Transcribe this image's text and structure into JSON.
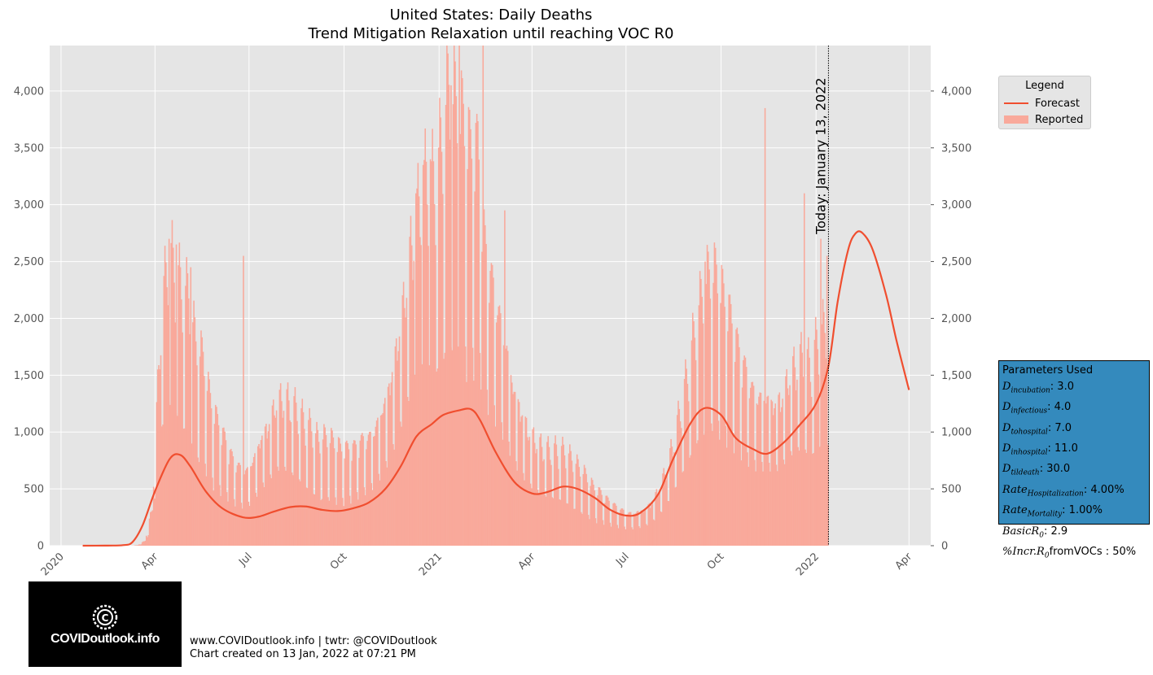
{
  "chart_data": {
    "type": "bar+line",
    "title_line1": "United States: Daily Deaths",
    "title_line2": "Trend Mitigation Relaxation until reaching VOC R0",
    "ylim": [
      0,
      4400
    ],
    "y_ticks": [
      0,
      500,
      1000,
      1500,
      2000,
      2500,
      3000,
      3500,
      4000
    ],
    "y_tick_labels": [
      "0",
      "500",
      "1,000",
      "1,500",
      "2,000",
      "2,500",
      "3,000",
      "3,500",
      "4,000"
    ],
    "xlim": [
      "2019-12-21",
      "2022-04-22"
    ],
    "x_ticks": [
      "2020-01-01",
      "2020-04-01",
      "2020-07-01",
      "2020-10-01",
      "2021-01-01",
      "2021-04-01",
      "2021-07-01",
      "2021-10-01",
      "2022-01-01",
      "2022-04-01"
    ],
    "x_tick_labels": [
      "2020",
      "Apr",
      "Jul",
      "Oct",
      "2021",
      "Apr",
      "Jul",
      "Oct",
      "2022",
      "Apr"
    ],
    "today_date": "2022-01-13",
    "today_label": "Today: January 13, 2022",
    "reported_weekly_avg": [
      [
        "2020-01-22",
        0
      ],
      [
        "2020-02-29",
        0
      ],
      [
        "2020-03-08",
        0
      ],
      [
        "2020-03-15",
        5
      ],
      [
        "2020-03-22",
        40
      ],
      [
        "2020-03-29",
        300
      ],
      [
        "2020-04-05",
        1500
      ],
      [
        "2020-04-12",
        2100
      ],
      [
        "2020-04-19",
        2050
      ],
      [
        "2020-04-26",
        1850
      ],
      [
        "2020-05-03",
        1800
      ],
      [
        "2020-05-10",
        1450
      ],
      [
        "2020-05-17",
        1350
      ],
      [
        "2020-05-24",
        1050
      ],
      [
        "2020-05-31",
        900
      ],
      [
        "2020-06-07",
        780
      ],
      [
        "2020-06-14",
        650
      ],
      [
        "2020-06-21",
        580
      ],
      [
        "2020-06-28",
        550
      ],
      [
        "2020-07-05",
        650
      ],
      [
        "2020-07-12",
        800
      ],
      [
        "2020-07-19",
        900
      ],
      [
        "2020-07-26",
        1050
      ],
      [
        "2020-08-02",
        1100
      ],
      [
        "2020-08-09",
        1050
      ],
      [
        "2020-08-16",
        1000
      ],
      [
        "2020-08-23",
        900
      ],
      [
        "2020-08-30",
        850
      ],
      [
        "2020-09-06",
        750
      ],
      [
        "2020-09-13",
        780
      ],
      [
        "2020-09-20",
        750
      ],
      [
        "2020-09-27",
        700
      ],
      [
        "2020-10-04",
        700
      ],
      [
        "2020-10-11",
        720
      ],
      [
        "2020-10-18",
        780
      ],
      [
        "2020-10-25",
        800
      ],
      [
        "2020-11-01",
        900
      ],
      [
        "2020-11-08",
        1050
      ],
      [
        "2020-11-15",
        1250
      ],
      [
        "2020-11-22",
        1550
      ],
      [
        "2020-11-29",
        1900
      ],
      [
        "2020-12-06",
        2300
      ],
      [
        "2020-12-13",
        2550
      ],
      [
        "2020-12-20",
        2700
      ],
      [
        "2020-12-27",
        2600
      ],
      [
        "2021-01-03",
        2900
      ],
      [
        "2021-01-10",
        3300
      ],
      [
        "2021-01-17",
        3150
      ],
      [
        "2021-01-24",
        3050
      ],
      [
        "2021-01-31",
        2850
      ],
      [
        "2021-02-07",
        2900
      ],
      [
        "2021-02-14",
        2200
      ],
      [
        "2021-02-21",
        1950
      ],
      [
        "2021-02-28",
        1700
      ],
      [
        "2021-03-07",
        1450
      ],
      [
        "2021-03-14",
        1150
      ],
      [
        "2021-03-21",
        1000
      ],
      [
        "2021-03-28",
        850
      ],
      [
        "2021-04-04",
        780
      ],
      [
        "2021-04-11",
        720
      ],
      [
        "2021-04-18",
        700
      ],
      [
        "2021-04-25",
        700
      ],
      [
        "2021-05-02",
        680
      ],
      [
        "2021-05-09",
        620
      ],
      [
        "2021-05-16",
        560
      ],
      [
        "2021-05-23",
        500
      ],
      [
        "2021-05-30",
        420
      ],
      [
        "2021-06-06",
        380
      ],
      [
        "2021-06-13",
        330
      ],
      [
        "2021-06-20",
        290
      ],
      [
        "2021-06-27",
        260
      ],
      [
        "2021-07-04",
        240
      ],
      [
        "2021-07-11",
        250
      ],
      [
        "2021-07-18",
        270
      ],
      [
        "2021-07-25",
        320
      ],
      [
        "2021-08-01",
        420
      ],
      [
        "2021-08-08",
        560
      ],
      [
        "2021-08-15",
        750
      ],
      [
        "2021-08-22",
        1000
      ],
      [
        "2021-08-29",
        1250
      ],
      [
        "2021-09-05",
        1550
      ],
      [
        "2021-09-12",
        1800
      ],
      [
        "2021-09-19",
        1950
      ],
      [
        "2021-09-26",
        1950
      ],
      [
        "2021-10-03",
        1800
      ],
      [
        "2021-10-10",
        1650
      ],
      [
        "2021-10-17",
        1450
      ],
      [
        "2021-10-24",
        1300
      ],
      [
        "2021-10-31",
        1150
      ],
      [
        "2021-11-07",
        1100
      ],
      [
        "2021-11-14",
        1100
      ],
      [
        "2021-11-21",
        1050
      ],
      [
        "2021-11-28",
        1100
      ],
      [
        "2021-12-05",
        1250
      ],
      [
        "2021-12-12",
        1350
      ],
      [
        "2021-12-19",
        1400
      ],
      [
        "2021-12-26",
        1300
      ],
      [
        "2022-01-02",
        1500
      ],
      [
        "2022-01-12",
        1600
      ]
    ],
    "reported_spikes": [
      [
        "2020-04-14",
        2700
      ],
      [
        "2020-04-21",
        2650
      ],
      [
        "2020-05-05",
        2450
      ],
      [
        "2020-06-25",
        2550
      ],
      [
        "2020-12-09",
        3100
      ],
      [
        "2020-12-16",
        3350
      ],
      [
        "2020-12-23",
        3400
      ],
      [
        "2021-01-12",
        4050
      ],
      [
        "2021-01-20",
        4400
      ],
      [
        "2021-02-12",
        4450
      ],
      [
        "2021-03-05",
        2950
      ],
      [
        "2021-09-15",
        2500
      ],
      [
        "2021-11-12",
        3850
      ],
      [
        "2021-12-20",
        3100
      ],
      [
        "2022-01-05",
        2700
      ],
      [
        "2022-01-11",
        2550
      ]
    ],
    "forecast": [
      [
        "2020-01-22",
        0
      ],
      [
        "2020-02-15",
        1
      ],
      [
        "2020-03-01",
        5
      ],
      [
        "2020-03-10",
        30
      ],
      [
        "2020-03-20",
        180
      ],
      [
        "2020-04-01",
        480
      ],
      [
        "2020-04-15",
        760
      ],
      [
        "2020-04-25",
        800
      ],
      [
        "2020-05-05",
        700
      ],
      [
        "2020-05-20",
        480
      ],
      [
        "2020-06-05",
        330
      ],
      [
        "2020-06-25",
        250
      ],
      [
        "2020-07-10",
        255
      ],
      [
        "2020-07-25",
        300
      ],
      [
        "2020-08-10",
        340
      ],
      [
        "2020-08-25",
        345
      ],
      [
        "2020-09-10",
        315
      ],
      [
        "2020-09-25",
        305
      ],
      [
        "2020-10-10",
        330
      ],
      [
        "2020-10-25",
        380
      ],
      [
        "2020-11-10",
        500
      ],
      [
        "2020-11-25",
        700
      ],
      [
        "2020-12-10",
        960
      ],
      [
        "2020-12-25",
        1070
      ],
      [
        "2021-01-05",
        1150
      ],
      [
        "2021-01-20",
        1190
      ],
      [
        "2021-02-01",
        1200
      ],
      [
        "2021-02-10",
        1100
      ],
      [
        "2021-02-25",
        820
      ],
      [
        "2021-03-15",
        560
      ],
      [
        "2021-04-01",
        460
      ],
      [
        "2021-04-15",
        470
      ],
      [
        "2021-05-01",
        520
      ],
      [
        "2021-05-15",
        500
      ],
      [
        "2021-06-01",
        420
      ],
      [
        "2021-06-15",
        320
      ],
      [
        "2021-07-01",
        265
      ],
      [
        "2021-07-15",
        290
      ],
      [
        "2021-08-01",
        450
      ],
      [
        "2021-08-15",
        750
      ],
      [
        "2021-09-01",
        1070
      ],
      [
        "2021-09-15",
        1210
      ],
      [
        "2021-10-01",
        1150
      ],
      [
        "2021-10-15",
        950
      ],
      [
        "2021-11-01",
        850
      ],
      [
        "2021-11-15",
        810
      ],
      [
        "2021-12-01",
        910
      ],
      [
        "2021-12-15",
        1050
      ],
      [
        "2022-01-01",
        1250
      ],
      [
        "2022-01-13",
        1580
      ],
      [
        "2022-01-22",
        2150
      ],
      [
        "2022-02-01",
        2600
      ],
      [
        "2022-02-08",
        2745
      ],
      [
        "2022-02-15",
        2750
      ],
      [
        "2022-02-25",
        2600
      ],
      [
        "2022-03-10",
        2200
      ],
      [
        "2022-03-20",
        1800
      ],
      [
        "2022-04-01",
        1370
      ]
    ],
    "legend": {
      "title": "Legend",
      "items": [
        "Forecast",
        "Reported"
      ]
    },
    "colors": {
      "forecast": "#f04e2f",
      "reported": "#f9a99b",
      "plot_bg": "#e5e5e5",
      "grid": "#ffffff",
      "params_bg": "#348abd"
    }
  },
  "params": {
    "title": "Parameters Used",
    "rows": [
      {
        "sym": "D",
        "sub": "incubation",
        "val": ": 3.0"
      },
      {
        "sym": "D",
        "sub": "infectious",
        "val": ": 4.0"
      },
      {
        "sym": "D",
        "sub": "tohospital",
        "val": ": 7.0"
      },
      {
        "sym": "D",
        "sub": "inhospital",
        "val": ": 11.0"
      },
      {
        "sym": "D",
        "sub": "tildeath",
        "val": ": 30.0"
      },
      {
        "sym": "Rate",
        "sub": "Hospitalization",
        "val": ": 4.00%"
      },
      {
        "sym": "Rate",
        "sub": "Mortality",
        "val": ": 1.00%"
      },
      {
        "sym": "BasicR",
        "sub": "0",
        "val": ": 2.9"
      },
      {
        "sym": "%Incr.R",
        "sub": "0",
        "val": "fromVOCs : 50%"
      }
    ]
  },
  "footer": {
    "line1": "www.COVIDoutlook.info | twtr: @COVIDoutlook",
    "line2": "Chart created on 13 Jan, 2022 at 07:21 PM"
  },
  "logo": {
    "text": "COVIDoutlook.info",
    "icon": "virus-copyright-icon"
  }
}
